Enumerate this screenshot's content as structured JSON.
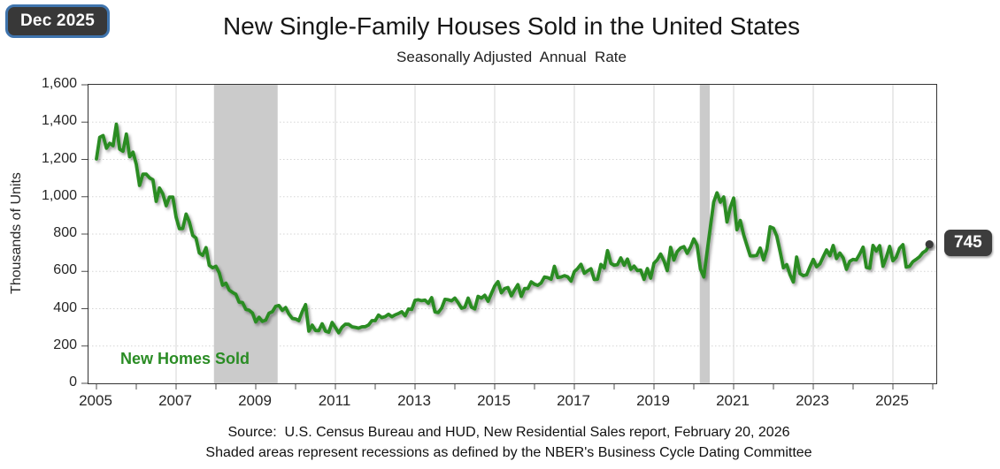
{
  "badge_label": "Dec 2025",
  "title": "New Single-Family Houses Sold in the United States",
  "subtitle": "Seasonally Adjusted  Annual  Rate",
  "annotation": "New Homes Sold",
  "callout_value": "745",
  "footer_line1": "Source:  U.S. Census Bureau and HUD, New Residential Sales report, February 20, 2026",
  "footer_line2": "Shaded areas represent recessions as defined by the NBER's Business Cycle Dating Committee",
  "colors": {
    "line": "#2a8c24",
    "recession_band": "#cbcbcb",
    "grid": "#d5d5d5",
    "frame": "#333333",
    "callout_bg": "#3d3d3d",
    "badge_bg": "#383838",
    "badge_border": "#3f74ad",
    "end_dot": "#3a3a3a"
  },
  "chart_data": {
    "type": "line",
    "title": "New Single-Family Houses Sold in the United States",
    "subtitle": "Seasonally Adjusted  Annual  Rate",
    "xlabel": "",
    "ylabel": "Thousands of Units",
    "ylim": [
      0,
      1600
    ],
    "y_tick_step": 200,
    "y_tick_labels": [
      "0",
      "200",
      "400",
      "600",
      "800",
      "1,000",
      "1,200",
      "1,400",
      "1,600"
    ],
    "x_tick_labels": [
      "2005",
      "2007",
      "2009",
      "2011",
      "2013",
      "2015",
      "2017",
      "2019",
      "2021",
      "2023",
      "2025"
    ],
    "x_start_year": 2005,
    "x_end_year": 2026.1,
    "grid": true,
    "legend_position": "inside-bottom-left",
    "last_value": 745,
    "last_value_label": "745",
    "last_month": "Dec 2025",
    "recessions": [
      {
        "name": "Great Recession",
        "start": 2007.95,
        "end": 2009.55
      },
      {
        "name": "COVID-19 recession",
        "start": 2020.15,
        "end": 2020.4
      }
    ],
    "series": [
      {
        "name": "New Homes Sold",
        "color": "#2a8c24",
        "frequency": "monthly",
        "start_month": "2005-01",
        "end_month": "2025-12",
        "values": [
          1203,
          1319,
          1328,
          1260,
          1286,
          1274,
          1389,
          1255,
          1244,
          1336,
          1214,
          1239,
          1174,
          1061,
          1121,
          1121,
          1101,
          1091,
          975,
          1047,
          1015,
          952,
          998,
          998,
          891,
          829,
          830,
          907,
          865,
          793,
          778,
          699,
          686,
          727,
          632,
          619,
          627,
          593,
          526,
          537,
          500,
          487,
          477,
          435,
          433,
          396,
          392,
          377,
          329,
          354,
          332,
          339,
          376,
          384,
          413,
          417,
          391,
          406,
          371,
          348,
          345,
          336,
          384,
          422,
          280,
          312,
          283,
          282,
          319,
          280,
          274,
          326,
          299,
          271,
          301,
          317,
          316,
          303,
          300,
          296,
          303,
          304,
          313,
          336,
          336,
          366,
          352,
          358,
          370,
          357,
          367,
          374,
          384,
          362,
          398,
          396,
          445,
          448,
          443,
          446,
          429,
          459,
          383,
          379,
          403,
          450,
          448,
          442,
          457,
          432,
          403,
          408,
          457,
          408,
          399,
          466,
          457,
          472,
          440,
          482,
          521,
          545,
          485,
          508,
          513,
          469,
          501,
          529,
          466,
          508,
          508,
          544,
          531,
          525,
          538,
          570,
          566,
          558,
          627,
          567,
          570,
          577,
          571,
          548,
          599,
          615,
          638,
          590,
          603,
          614,
          556,
          558,
          637,
          618,
          711,
          643,
          633,
          636,
          672,
          633,
          666,
          611,
          628,
          604,
          607,
          557,
          615,
          564,
          644,
          662,
          693,
          656,
          604,
          729,
          661,
          706,
          725,
          733,
          697,
          730,
          774,
          741,
          612,
          570,
          704,
          840,
          972,
          1021,
          971,
          999,
          865,
          943,
          993,
          823,
          873,
          796,
          740,
          683,
          683,
          686,
          725,
          662,
          717,
          839,
          831,
          790,
          707,
          619,
          636,
          582,
          543,
          677,
          588,
          577,
          582,
          625,
          664,
          625,
          640,
          679,
          715,
          684,
          739,
          669,
          698,
          672,
          611,
          654,
          664,
          662,
          693,
          730,
          621,
          617,
          739,
          709,
          738,
          627,
          674,
          734,
          657,
          676,
          724,
          743,
          623,
          627,
          652,
          664,
          678,
          700,
          712,
          745
        ]
      }
    ]
  }
}
